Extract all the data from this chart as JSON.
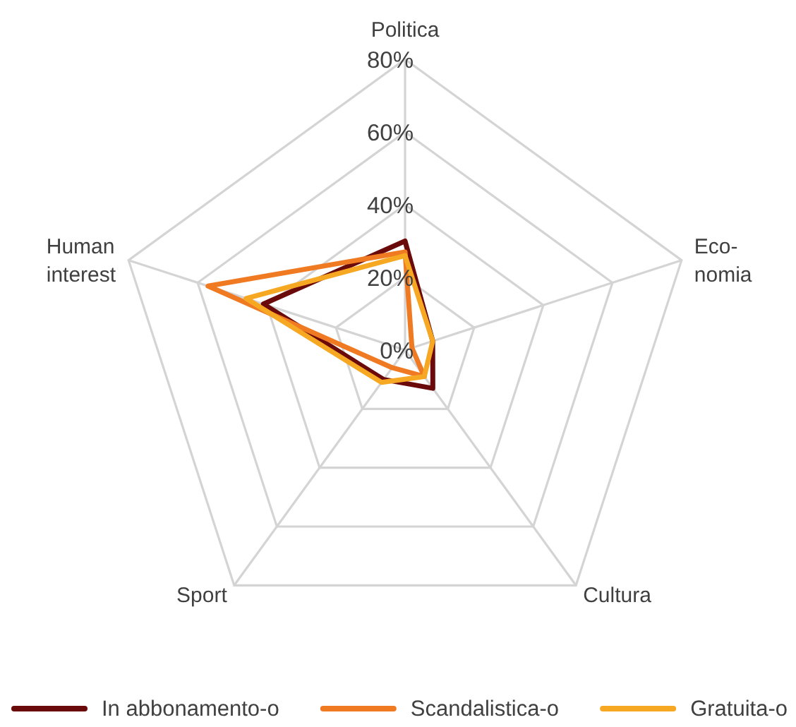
{
  "chart_data": {
    "type": "radar",
    "categories": [
      "Politica",
      "Eco-\nnomia",
      "Cultura",
      "Sport",
      "Human\ninterest"
    ],
    "series": [
      {
        "name": "In abbonamento-o",
        "color": "#6b0a0a",
        "values": [
          30,
          8,
          13,
          10,
          41
        ]
      },
      {
        "name": "Scandalistica-o",
        "color": "#f07a22",
        "values": [
          27,
          2,
          9,
          6,
          57
        ]
      },
      {
        "name": "Gratuita-o",
        "color": "#f7a823",
        "values": [
          26,
          8,
          9,
          11,
          46
        ]
      }
    ],
    "ylim": [
      0,
      80
    ],
    "yticks": [
      {
        "value": 0,
        "label": "0%"
      },
      {
        "value": 20,
        "label": "20%"
      },
      {
        "value": 40,
        "label": "40%"
      },
      {
        "value": 60,
        "label": "60%"
      },
      {
        "value": 80,
        "label": "80%"
      }
    ],
    "grid": true,
    "legend": "bottom",
    "line_style": "solid",
    "marker": "none"
  }
}
